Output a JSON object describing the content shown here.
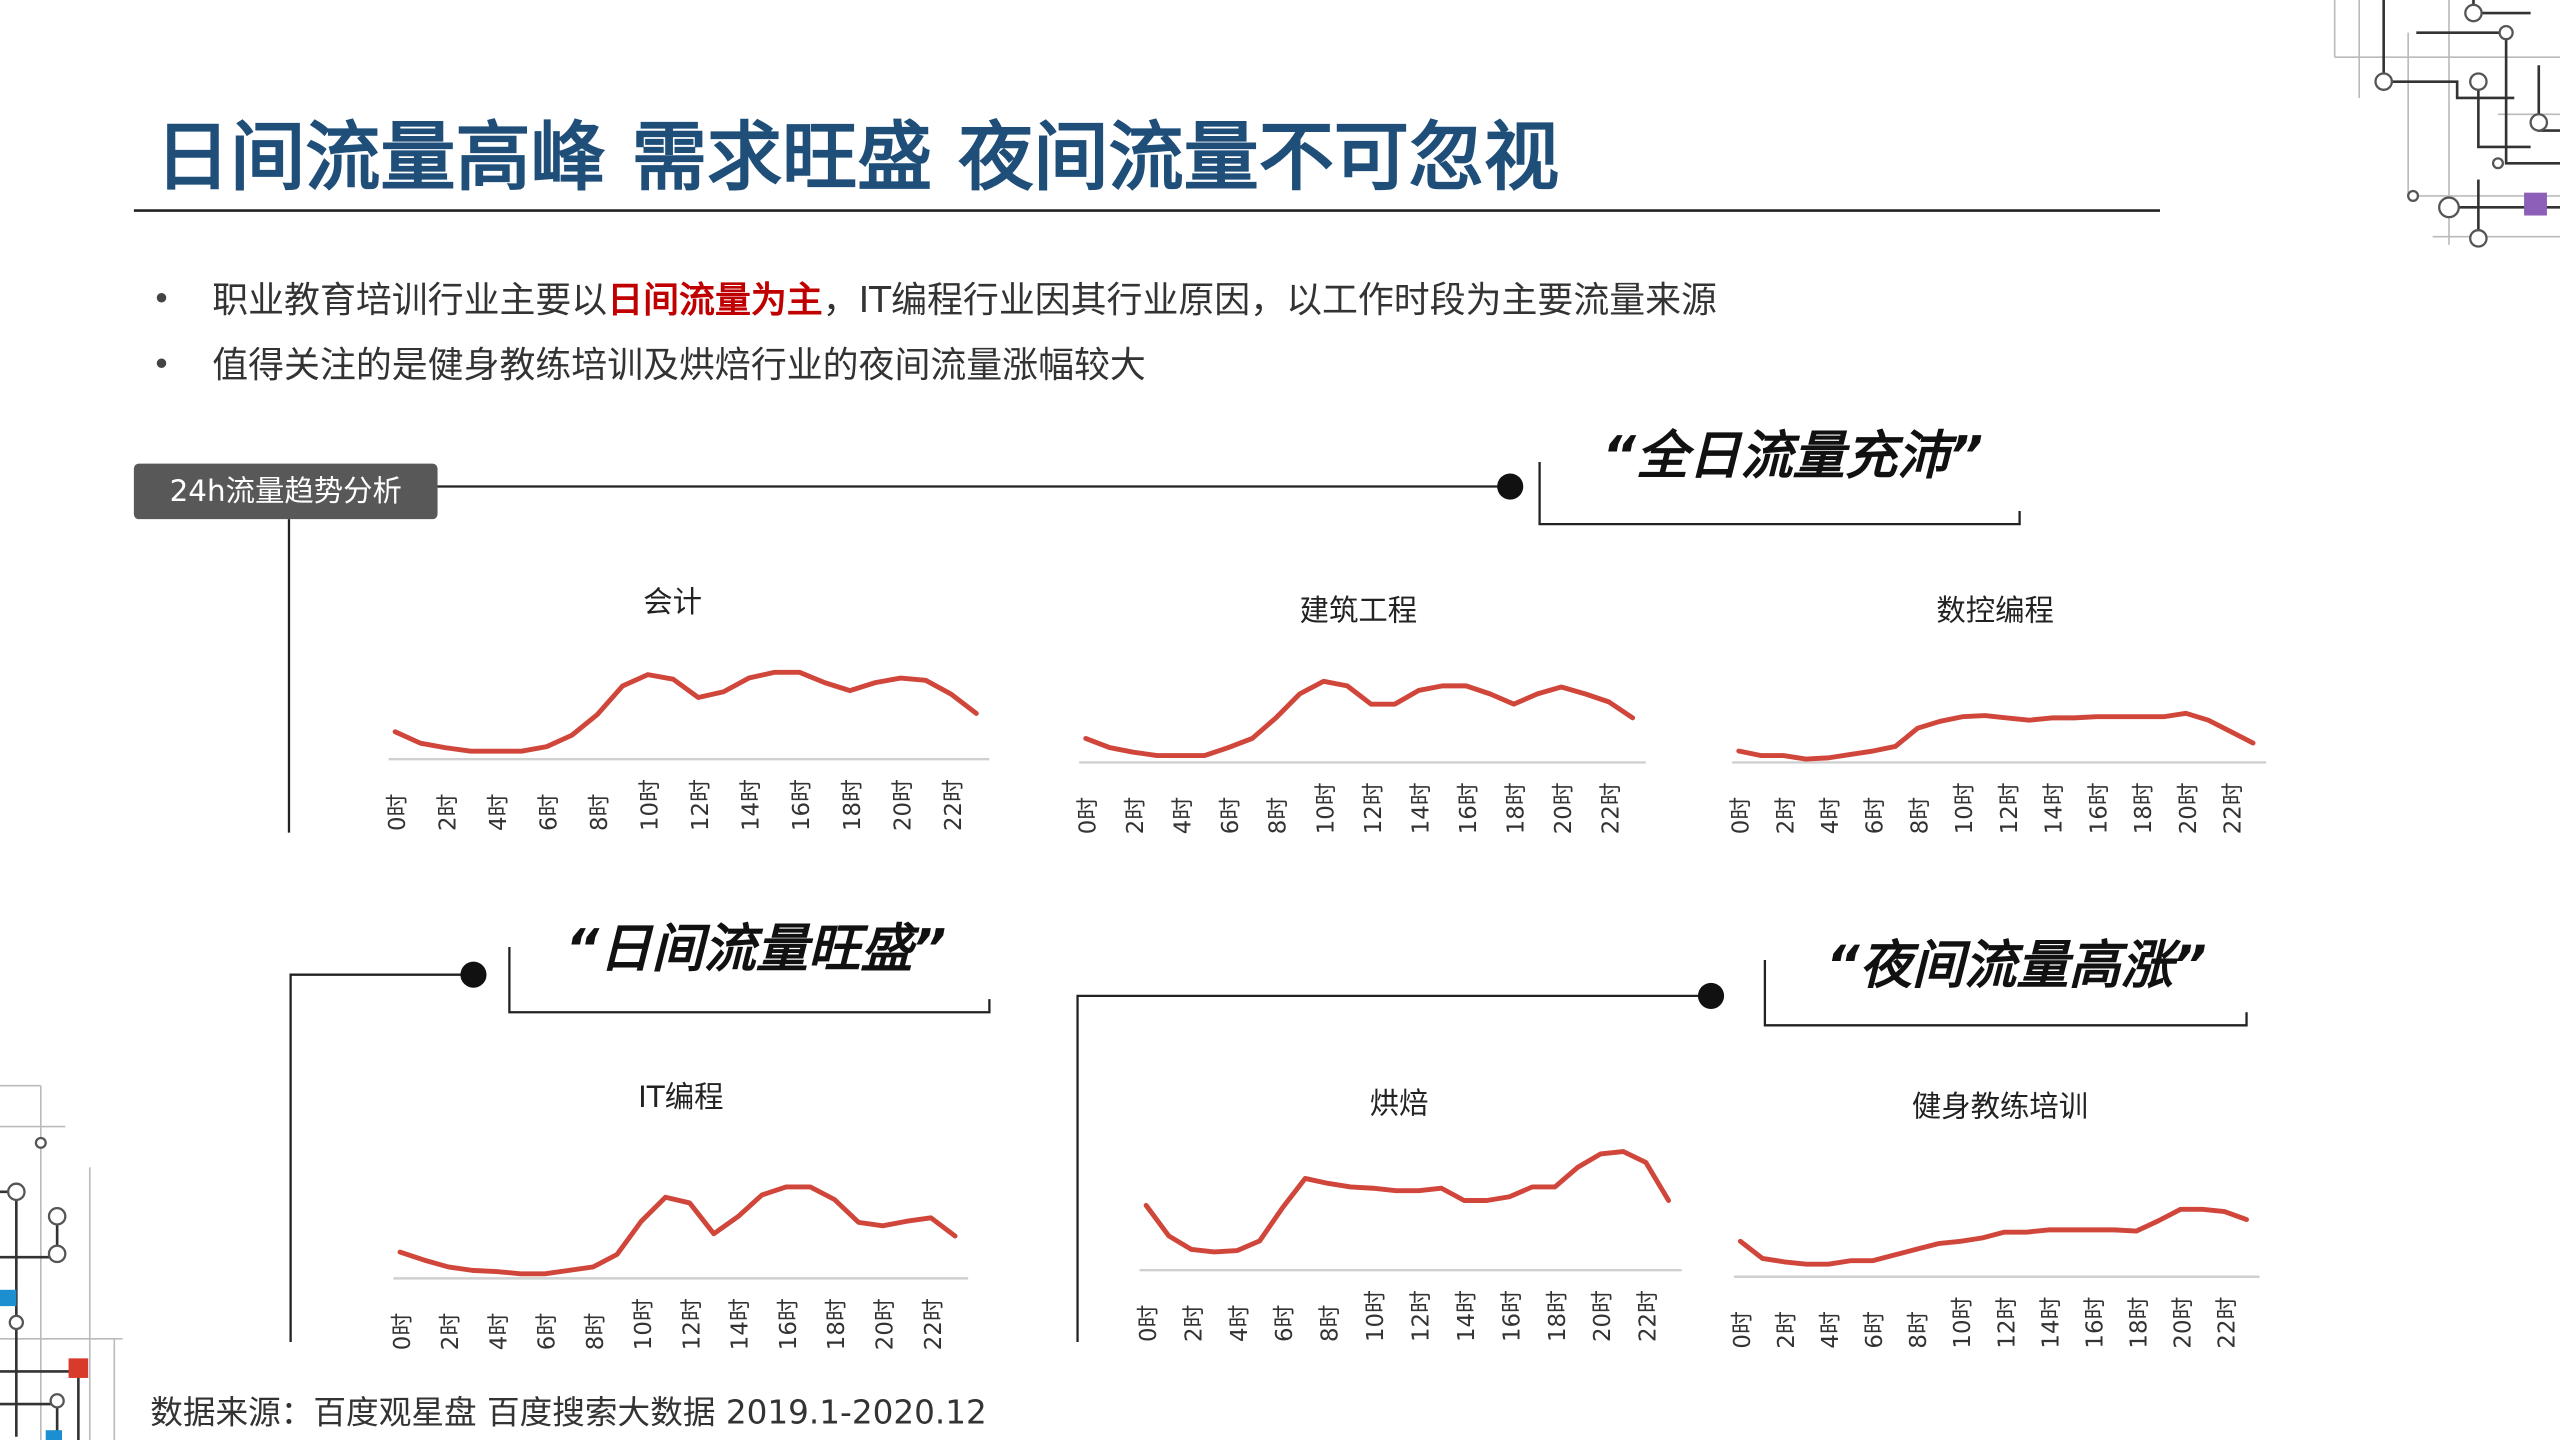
{
  "header": {
    "title": "日间流量高峰 需求旺盛 夜间流量不可忽视"
  },
  "bullets": [
    {
      "parts": [
        "职业教育培训行业主要以",
        "日间流量为主",
        "，IT编程行业因其行业原因，以工作时段为主要流量来源"
      ]
    },
    {
      "parts": [
        "值得关注的是健身教练培训及烘焙行业的夜间流量涨幅较大"
      ]
    }
  ],
  "tag": "24h流量趋势分析",
  "quotes": [
    "“全日流量充沛”",
    "“日间流量旺盛”",
    "“夜间流量高涨”"
  ],
  "source": "数据来源：百度观星盘 百度搜索大数据 2019.1-2020.12",
  "chart_data": [
    {
      "type": "line",
      "title": "会计",
      "categories": [
        "0时",
        null,
        "2时",
        null,
        "4时",
        null,
        "6时",
        null,
        "8时",
        null,
        "10时",
        null,
        "12时",
        null,
        "14时",
        null,
        "16时",
        null,
        "18时",
        null,
        "20时",
        null,
        "22时",
        null
      ],
      "values": [
        24,
        14,
        10,
        7,
        7,
        7,
        11,
        21,
        39,
        64,
        74,
        70,
        54,
        59,
        71,
        76,
        76,
        67,
        60,
        67,
        71,
        69,
        57,
        40
      ],
      "color": "#d0463b",
      "ylim": [
        0,
        100
      ]
    },
    {
      "type": "line",
      "title": "建筑工程",
      "categories": [
        "0时",
        null,
        "2时",
        null,
        "4时",
        null,
        "6时",
        null,
        "8时",
        null,
        "10时",
        null,
        "12时",
        null,
        "14时",
        null,
        "16时",
        null,
        "18时",
        null,
        "20时",
        null,
        "22时",
        null
      ],
      "values": [
        21,
        13,
        9,
        6,
        6,
        6,
        13,
        21,
        39,
        60,
        71,
        67,
        51,
        51,
        63,
        67,
        67,
        60,
        51,
        60,
        66,
        60,
        53,
        39
      ],
      "color": "#d0463b",
      "ylim": [
        0,
        100
      ]
    },
    {
      "type": "line",
      "title": "数控编程",
      "categories": [
        "0时",
        null,
        "2时",
        null,
        "4时",
        null,
        "6时",
        null,
        "8时",
        null,
        "10时",
        null,
        "12时",
        null,
        "14时",
        null,
        "16时",
        null,
        "18时",
        null,
        "20时",
        null,
        "22时",
        null
      ],
      "values": [
        10,
        6,
        6,
        3,
        4,
        7,
        10,
        14,
        30,
        36,
        40,
        41,
        39,
        37,
        39,
        39,
        40,
        40,
        40,
        40,
        43,
        37,
        27,
        17
      ],
      "color": "#d0463b",
      "ylim": [
        0,
        100
      ]
    },
    {
      "type": "line",
      "title": "IT编程",
      "categories": [
        "0时",
        null,
        "2时",
        null,
        "4时",
        null,
        "6时",
        null,
        "8时",
        null,
        "10时",
        null,
        "12时",
        null,
        "14时",
        null,
        "16时",
        null,
        "18时",
        null,
        "20时",
        null,
        "22时",
        null
      ],
      "values": [
        23,
        16,
        10,
        7,
        6,
        4,
        4,
        7,
        10,
        21,
        50,
        71,
        66,
        39,
        54,
        73,
        80,
        80,
        69,
        49,
        46,
        50,
        53,
        37
      ],
      "color": "#d0463b",
      "ylim": [
        0,
        100
      ]
    },
    {
      "type": "line",
      "title": "烘焙",
      "categories": [
        "0时",
        null,
        "2时",
        null,
        "4时",
        null,
        "6时",
        null,
        "8时",
        null,
        "10时",
        null,
        "12时",
        null,
        "14时",
        null,
        "16时",
        null,
        "18时",
        null,
        "20时",
        null,
        "22时",
        null
      ],
      "values": [
        53,
        28,
        17,
        15,
        16,
        24,
        51,
        75,
        71,
        68,
        67,
        65,
        65,
        67,
        57,
        57,
        60,
        68,
        68,
        84,
        95,
        97,
        88,
        57
      ],
      "color": "#d0463b",
      "ylim": [
        0,
        100
      ]
    },
    {
      "type": "line",
      "title": "健身教练培训",
      "categories": [
        "0时",
        null,
        "2时",
        null,
        "4时",
        null,
        "6时",
        null,
        "8时",
        null,
        "10时",
        null,
        "12时",
        null,
        "14时",
        null,
        "16时",
        null,
        "18时",
        null,
        "20时",
        null,
        "22时",
        null
      ],
      "values": [
        31,
        16,
        13,
        11,
        11,
        14,
        14,
        19,
        24,
        29,
        31,
        34,
        39,
        39,
        41,
        41,
        41,
        41,
        40,
        49,
        59,
        59,
        57,
        50
      ],
      "color": "#d0463b",
      "ylim": [
        0,
        100
      ]
    }
  ]
}
